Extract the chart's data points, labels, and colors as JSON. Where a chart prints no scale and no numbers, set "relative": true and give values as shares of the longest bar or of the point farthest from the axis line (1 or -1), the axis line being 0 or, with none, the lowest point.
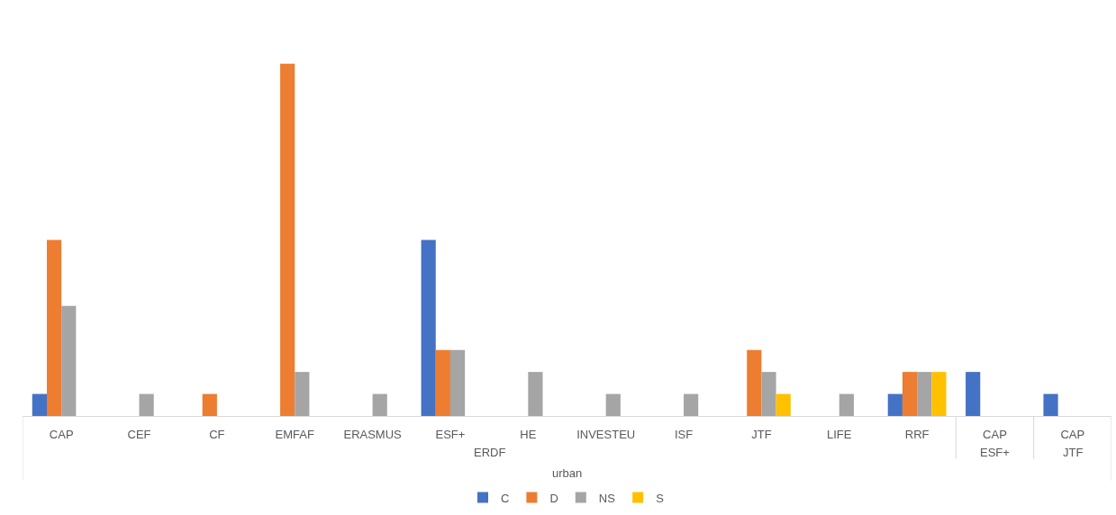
{
  "chart_data": {
    "type": "bar",
    "relative": true,
    "categories": [
      "CAP",
      "CEF",
      "CF",
      "EMFAF",
      "ERASMUS",
      "ESF+",
      "HE",
      "INVESTEU",
      "ISF",
      "JTF",
      "LIFE",
      "RRF",
      "CAP",
      "CAP"
    ],
    "series": [
      {
        "name": "C",
        "color": "#4472c4",
        "values": [
          0.0625,
          null,
          null,
          null,
          null,
          0.5,
          null,
          null,
          null,
          null,
          null,
          0.0625,
          0.125,
          0.0625
        ]
      },
      {
        "name": "D",
        "color": "#ed7d31",
        "values": [
          0.5,
          null,
          0.0625,
          1,
          null,
          0.1875,
          null,
          null,
          null,
          0.1875,
          null,
          0.125,
          null,
          null
        ]
      },
      {
        "name": "NS",
        "color": "#a5a5a5",
        "values": [
          0.3125,
          0.0625,
          null,
          0.125,
          0.0625,
          0.1875,
          0.125,
          0.0625,
          0.0625,
          0.125,
          0.0625,
          0.125,
          null,
          null
        ]
      },
      {
        "name": "S",
        "color": "#ffc000",
        "values": [
          null,
          null,
          null,
          null,
          null,
          null,
          null,
          null,
          null,
          0.0625,
          null,
          0.125,
          null,
          null
        ]
      }
    ],
    "annotations": [
      "ERDF",
      "ESF+",
      "JTF",
      "urban"
    ],
    "legend": "bottom"
  }
}
